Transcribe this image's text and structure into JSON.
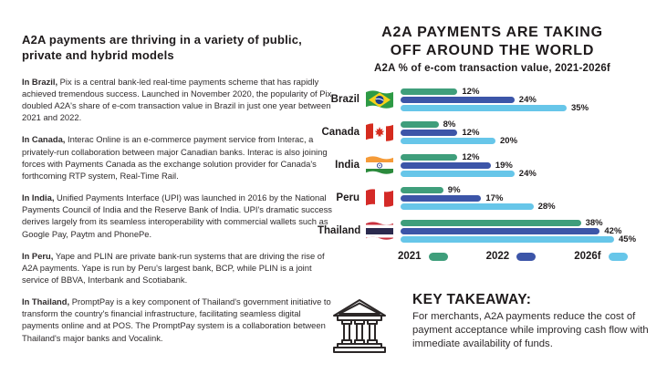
{
  "left_panel": {
    "heading": "A2A payments are thriving in a variety of public, private and hybrid models",
    "paragraphs": [
      {
        "lead": "In Brazil,",
        "text": " Pix is a central bank-led real-time payments scheme that has rapidly achieved tremendous success. Launched in November 2020, the popularity of Pix doubled A2A's share of e-com transaction value in Brazil in just one year between 2021 and 2022."
      },
      {
        "lead": "In Canada,",
        "text": " Interac Online is an e-commerce payment service from Interac, a privately-run collaboration between major Canadian banks. Interac is also joining forces with Payments Canada as the exchange solution provider for Canada's forthcoming RTP system, Real-Time Rail."
      },
      {
        "lead": "In India,",
        "text": " Unified Payments Interface (UPI) was launched in 2016 by the National Payments Council of India and the Reserve Bank of India. UPI's dramatic success derives largely from its seamless interoperability with commercial wallets such as Google Pay, Paytm and PhonePe."
      },
      {
        "lead": "In Peru,",
        "text": " Yape and PLIN are private bank-run systems that are driving the rise of A2A payments. Yape is run by Peru's largest bank, BCP, while PLIN is a joint service of BBVA, Interbank and Scotiabank."
      },
      {
        "lead": "In Thailand,",
        "text": " PromptPay is a key component of Thailand's government initiative to transform the country's financial infrastructure, facilitating seamless digital payments online and at POS. The PromptPay system is a collaboration between Thailand's major banks and Vocalink."
      }
    ]
  },
  "chart": {
    "title_line1": "A2A  PAYMENTS ARE TAKING",
    "title_line2": "OFF AROUND THE WORLD",
    "subtitle": "A2A % of e-com transaction value, 2021-2026f"
  },
  "chart_data": {
    "type": "bar",
    "orientation": "horizontal",
    "title": "A2A PAYMENTS ARE TAKING OFF AROUND THE WORLD",
    "subtitle": "A2A % of e-com transaction value, 2021-2026f",
    "categories": [
      "Brazil",
      "Canada",
      "India",
      "Peru",
      "Thailand"
    ],
    "series": [
      {
        "name": "2021",
        "color": "#3f9e7b",
        "values": [
          12,
          8,
          12,
          9,
          38
        ]
      },
      {
        "name": "2022",
        "color": "#3c55a8",
        "values": [
          24,
          12,
          19,
          17,
          42
        ]
      },
      {
        "name": "2026f",
        "color": "#67c6e9",
        "values": [
          35,
          20,
          24,
          28,
          45
        ]
      }
    ],
    "value_suffix": "%",
    "xlim": [
      0,
      50
    ],
    "grid": false,
    "legend_position": "bottom",
    "flag_icons": [
      "brazil-flag-icon",
      "canada-flag-icon",
      "india-flag-icon",
      "peru-flag-icon",
      "thailand-flag-icon"
    ]
  },
  "key_takeaway": {
    "icon": "bank-icon",
    "title": "KEY TAKEAWAY:",
    "body": "For merchants, A2A payments reduce the cost of payment acceptance while improving cash flow with immediate availability of funds."
  }
}
